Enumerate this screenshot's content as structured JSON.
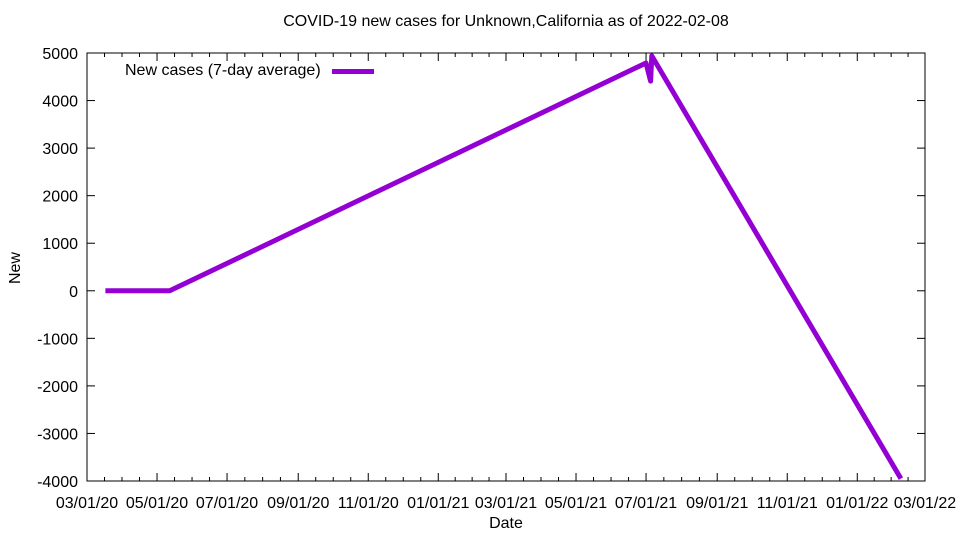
{
  "chart_data": {
    "type": "line",
    "title": "COVID-19 new cases for Unknown,California as of 2022-02-08",
    "grid": false,
    "background_color": "#ffffff",
    "text_color": "#000000",
    "border_color": "#000000",
    "legend_position": "top-left-inside",
    "x_axis": {
      "label": "Date",
      "range": [
        "2020-03-01",
        "2022-03-01"
      ],
      "ticks": [
        {
          "date": "2020-03-01",
          "label": "03/01/20"
        },
        {
          "date": "2020-05-01",
          "label": "05/01/20"
        },
        {
          "date": "2020-07-01",
          "label": "07/01/20"
        },
        {
          "date": "2020-09-01",
          "label": "09/01/20"
        },
        {
          "date": "2020-11-01",
          "label": "11/01/20"
        },
        {
          "date": "2021-01-01",
          "label": "01/01/21"
        },
        {
          "date": "2021-03-01",
          "label": "03/01/21"
        },
        {
          "date": "2021-05-01",
          "label": "05/01/21"
        },
        {
          "date": "2021-07-01",
          "label": "07/01/21"
        },
        {
          "date": "2021-09-01",
          "label": "09/01/21"
        },
        {
          "date": "2021-11-01",
          "label": "11/01/21"
        },
        {
          "date": "2022-01-01",
          "label": "01/01/22"
        },
        {
          "date": "2022-03-01",
          "label": "03/01/22"
        }
      ],
      "minor_ticks_per_interval": 3
    },
    "y_axis": {
      "label": "New",
      "ylim": [
        -4000,
        5000
      ],
      "ticks": [
        {
          "value": -4000,
          "label": "-4000"
        },
        {
          "value": -3000,
          "label": "-3000"
        },
        {
          "value": -2000,
          "label": "-2000"
        },
        {
          "value": -1000,
          "label": "-1000"
        },
        {
          "value": 0,
          "label": "0"
        },
        {
          "value": 1000,
          "label": "1000"
        },
        {
          "value": 2000,
          "label": "2000"
        },
        {
          "value": 3000,
          "label": "3000"
        },
        {
          "value": 4000,
          "label": "4000"
        },
        {
          "value": 5000,
          "label": "5000"
        }
      ]
    },
    "series": [
      {
        "name": "New cases (7-day average)",
        "color": "#9400D3",
        "line_width": 5,
        "points": [
          [
            "2020-03-17",
            0
          ],
          [
            "2020-05-12",
            0
          ],
          [
            "2021-07-01",
            4790
          ],
          [
            "2021-07-05",
            4410
          ],
          [
            "2021-07-06",
            4940
          ],
          [
            "2022-02-08",
            -3950
          ]
        ]
      }
    ]
  }
}
